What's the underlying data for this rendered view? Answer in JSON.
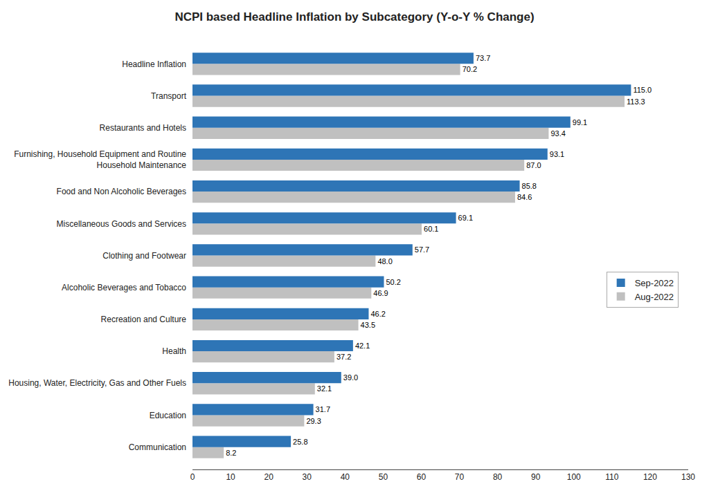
{
  "chart_data": {
    "type": "bar",
    "orientation": "horizontal",
    "title": "NCPI based Headline Inflation by Subcategory (Y-o-Y % Change)",
    "categories": [
      "Communication",
      "Education",
      "Housing, Water, Electricity, Gas and Other Fuels",
      "Health",
      "Recreation and Culture",
      "Alcoholic Beverages and Tobacco",
      "Clothing and Footwear",
      "Miscellaneous Goods and Services",
      "Food and Non Alcoholic Beverages",
      "Furnishing, Household Equipment and Routine\nHousehold Maintenance",
      "Restaurants and Hotels",
      "Transport",
      "Headline Inflation"
    ],
    "series": [
      {
        "name": "Sep-2022",
        "color": "#2E75B6",
        "values": [
          25.8,
          31.7,
          39.0,
          42.1,
          46.2,
          50.2,
          57.7,
          69.1,
          85.8,
          93.1,
          99.1,
          115.0,
          73.7
        ],
        "value_labels": [
          "25.8",
          "31.7",
          "39.0",
          "42.1",
          "46.2",
          "50.2",
          "57.7",
          "69.1",
          "85.8",
          "93.1",
          "99.1",
          "115.0",
          "73.7"
        ]
      },
      {
        "name": "Aug-2022",
        "color": "#C0C0C0",
        "values": [
          8.2,
          29.3,
          32.1,
          37.2,
          43.5,
          46.9,
          48.0,
          60.1,
          84.6,
          87.0,
          93.4,
          113.3,
          70.2
        ],
        "value_labels": [
          "8.2",
          "29.3",
          "32.1",
          "37.2",
          "43.5",
          "46.9",
          "48.0",
          "60.1",
          "84.6",
          "87.0",
          "93.4",
          "113.3",
          "70.2"
        ]
      }
    ],
    "xlim": [
      0,
      130
    ],
    "xticks": [
      0,
      10,
      20,
      30,
      40,
      50,
      60,
      70,
      80,
      90,
      100,
      110,
      120,
      130
    ],
    "data_labels": true,
    "grid": false,
    "legend": "right"
  }
}
